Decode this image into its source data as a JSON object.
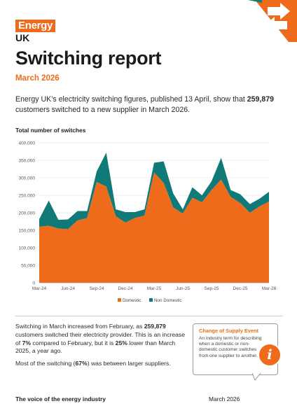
{
  "brand": {
    "logo_text": "Energy",
    "logo_sub": "UK",
    "orange": "#ee6b1c",
    "teal": "#0f7a78"
  },
  "header": {
    "title": "Switching report",
    "subtitle": "March 2026"
  },
  "intro": {
    "text_before": "Energy UK’s electricity switching figures, published 13 April, show that ",
    "highlight": "259,879",
    "text_after": " customers switched to a new supplier in March 2026."
  },
  "chart_title": "Total number of switches",
  "chart_data": {
    "type": "area",
    "title": "Total number of switches",
    "stacked": true,
    "ylim": [
      0,
      400000
    ],
    "y_ticks": [
      "0",
      "50,000",
      "100,000",
      "150,000",
      "200,000",
      "250,000",
      "300,000",
      "350,000",
      "400,000"
    ],
    "x_ticks": [
      "Mar-24",
      "Jun-24",
      "Sep-24",
      "Dec-24",
      "Mar-25",
      "Jun-25",
      "Sep-25",
      "Dec-25",
      "Mar-26"
    ],
    "categories": [
      "Mar-24",
      "Apr-24",
      "May-24",
      "Jun-24",
      "Jul-24",
      "Aug-24",
      "Sep-24",
      "Oct-24",
      "Nov-24",
      "Dec-24",
      "Jan-25",
      "Feb-25",
      "Mar-25",
      "Apr-25",
      "May-25",
      "Jun-25",
      "Jul-25",
      "Aug-25",
      "Sep-25",
      "Oct-25",
      "Nov-25",
      "Dec-25",
      "Jan-26",
      "Feb-26",
      "Mar-26"
    ],
    "series": [
      {
        "name": "Domestic",
        "color": "#ee6b1c",
        "values": [
          160000,
          163000,
          155000,
          153000,
          178000,
          185000,
          288000,
          275000,
          190000,
          172000,
          185000,
          192000,
          315000,
          285000,
          215000,
          198000,
          243000,
          230000,
          265000,
          295000,
          245000,
          228000,
          200000,
          218000,
          232000
        ]
      },
      {
        "name": "Non Domestic",
        "color": "#0f7a78",
        "values": [
          22000,
          72000,
          25000,
          28000,
          27000,
          20000,
          30000,
          97000,
          20000,
          30000,
          17000,
          18000,
          28000,
          62000,
          40000,
          12000,
          30000,
          20000,
          25000,
          62000,
          20000,
          25000,
          25000,
          22000,
          27879
        ]
      }
    ],
    "legend_position": "bottom",
    "grid": true
  },
  "body": {
    "p1_a": "Switching in March increased from February, as ",
    "p1_b": "259,879",
    "p1_c": " customers switched their electricity provider. This is an increase of ",
    "p1_d": "7%",
    "p1_e": " compared to February, but it is ",
    "p1_f": "25%",
    "p1_g": " lower than March 2025, a year ago.",
    "p2_a": "Most of the switching (",
    "p2_b": "67%",
    "p2_c": ") was between larger suppliers."
  },
  "callout": {
    "title": "Change of Supply Event",
    "text": "An industry term for describing when a domestic or non-domestic customer switches from one supplier to another.",
    "icon": "info-icon",
    "icon_glyph": "i"
  },
  "footer": {
    "tagline": "The voice of the energy industry",
    "date": "March 2026"
  }
}
